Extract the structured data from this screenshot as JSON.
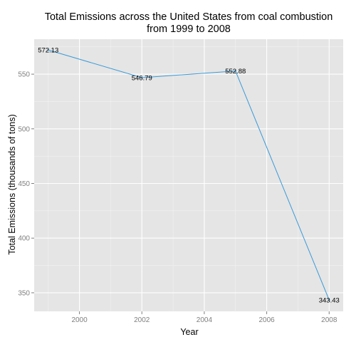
{
  "chart_data": {
    "type": "line",
    "title_lines": [
      "Total Emissions across the United States from coal combustion",
      "from 1999 to 2008"
    ],
    "xlabel": "Year",
    "ylabel": "Total Emissions (thousands of tons)",
    "x": [
      1999,
      2002,
      2005,
      2008
    ],
    "series": [
      {
        "values": [
          572.13,
          546.79,
          552.88,
          343.43
        ],
        "labels": [
          "572.13",
          "546.79",
          "552.88",
          "343.43"
        ]
      }
    ],
    "xlim": [
      1998.55,
      2008.45
    ],
    "ylim": [
      333.0,
      582.0
    ],
    "x_ticks": [
      2000,
      2002,
      2004,
      2006,
      2008
    ],
    "x_tick_labels": [
      "2000",
      "2002",
      "2004",
      "2006",
      "2008"
    ],
    "y_ticks": [
      350,
      400,
      450,
      500,
      550
    ],
    "y_tick_labels": [
      "350",
      "400",
      "450",
      "500",
      "550"
    ],
    "grid": true,
    "panel_background": "#e5e5e5",
    "line_color": "#3a9ad9"
  }
}
